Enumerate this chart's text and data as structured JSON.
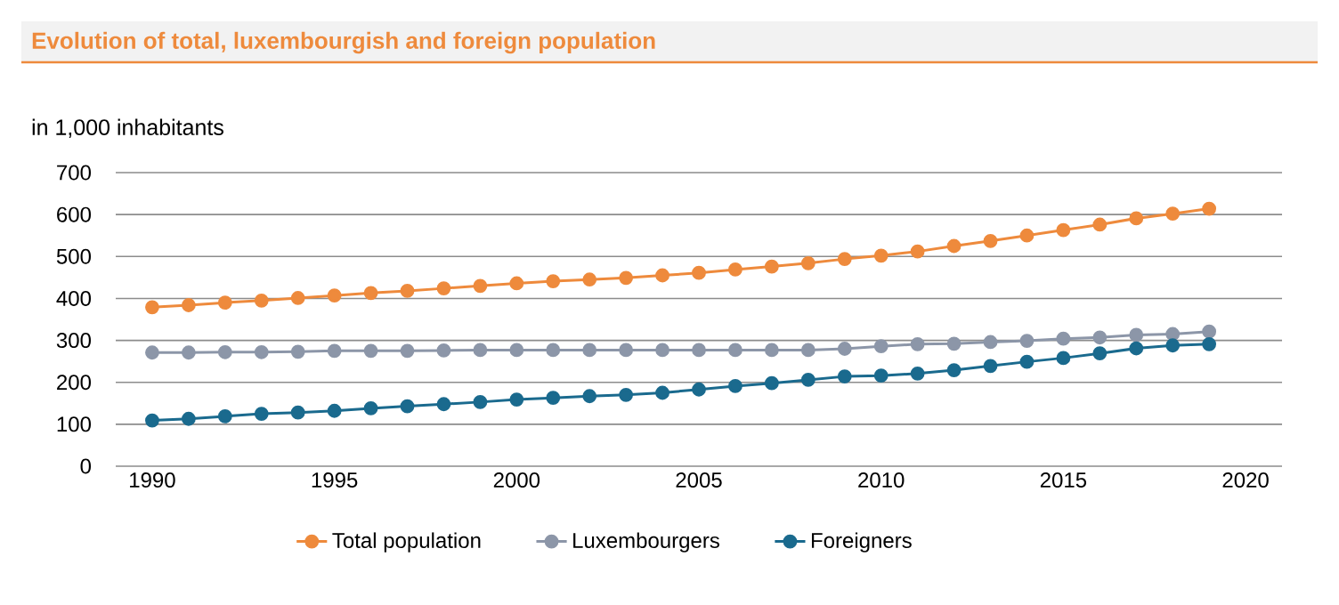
{
  "chart_data": {
    "type": "line",
    "title": "Evolution of total, luxembourgish and foreign population",
    "ylabel": "in 1,000 inhabitants",
    "x": [
      1990,
      1991,
      1992,
      1993,
      1994,
      1995,
      1996,
      1997,
      1998,
      1999,
      2000,
      2001,
      2002,
      2003,
      2004,
      2005,
      2006,
      2007,
      2008,
      2009,
      2010,
      2011,
      2012,
      2013,
      2014,
      2015,
      2016,
      2017,
      2018,
      2019
    ],
    "series": [
      {
        "name": "Total population",
        "color": "#ee8a3c",
        "values": [
          379,
          384,
          390,
          395,
          401,
          407,
          413,
          418,
          424,
          430,
          436,
          441,
          445,
          449,
          455,
          461,
          469,
          476,
          484,
          494,
          502,
          512,
          525,
          537,
          550,
          563,
          576,
          591,
          602,
          614
        ]
      },
      {
        "name": "Luxembourgers",
        "color": "#8c96a8",
        "values": [
          271,
          271,
          272,
          272,
          273,
          275,
          275,
          275,
          276,
          277,
          277,
          277,
          277,
          277,
          277,
          277,
          277,
          277,
          277,
          280,
          286,
          291,
          292,
          296,
          299,
          304,
          307,
          313,
          315,
          321
        ]
      },
      {
        "name": "Foreigners",
        "color": "#1a6a8e",
        "values": [
          109,
          113,
          119,
          125,
          128,
          132,
          138,
          143,
          148,
          153,
          159,
          163,
          167,
          170,
          175,
          183,
          191,
          198,
          206,
          214,
          216,
          221,
          229,
          239,
          249,
          258,
          269,
          281,
          288,
          291
        ]
      }
    ],
    "xlim": [
      1989,
      2021
    ],
    "xticks": [
      1990,
      1995,
      2000,
      2005,
      2010,
      2015,
      2020
    ],
    "ylim": [
      0,
      700
    ],
    "yticks": [
      0,
      100,
      200,
      300,
      400,
      500,
      600,
      700
    ],
    "grid": "y",
    "legend": "bottom",
    "marker": "circle",
    "line_style": "solid"
  }
}
